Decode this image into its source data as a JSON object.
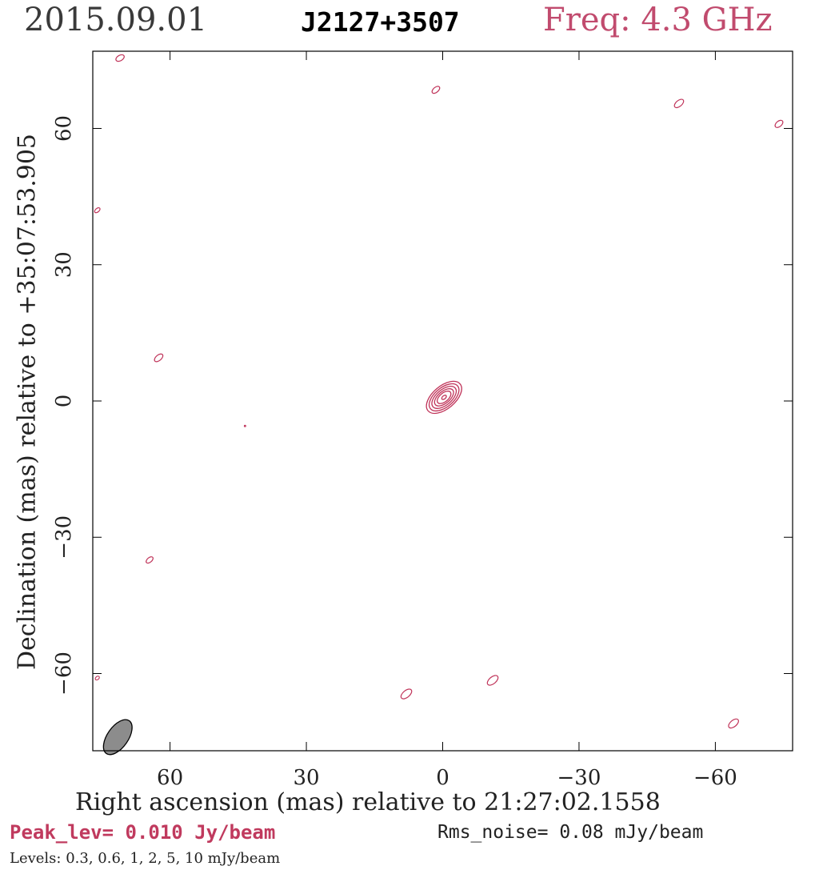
{
  "header": {
    "date": "2015.09.01",
    "source": "J2127+3507",
    "frequency": "Freq: 4.3 GHz"
  },
  "footer": {
    "peak": "Peak_lev=  0.010 Jy/beam",
    "rms": "Rms_noise= 0.08 mJy/beam",
    "levels": "Levels: 0.3, 0.6,   1,   2,   5,  10 mJy/beam"
  },
  "colors": {
    "contour": "#c0345a",
    "beam_fill": "#8c8c8c",
    "axis": "#000000"
  },
  "chart_data": {
    "type": "contour",
    "xlabel": "Right ascension (mas) relative to 21:27:02.1558",
    "ylabel": "Declination (mas) relative to +35:07:53.905",
    "xlim": [
      77,
      -77
    ],
    "ylim": [
      -77,
      77
    ],
    "x_reversed": true,
    "xticks": [
      60,
      30,
      0,
      -30,
      -60
    ],
    "xtick_labels": [
      "60",
      "30",
      "0",
      "−30",
      "−60"
    ],
    "yticks": [
      60,
      30,
      0,
      -30,
      -60
    ],
    "ytick_labels": [
      "60",
      "30",
      "0",
      "−30",
      "−60"
    ],
    "contour_levels_mJy": [
      0.3,
      0.6,
      1,
      2,
      5,
      10
    ],
    "peak_Jy_per_beam": 0.01,
    "rms_mJy_per_beam": 0.08,
    "core": {
      "x": -0.3,
      "y": 0.8,
      "pa_deg": -40,
      "contours": [
        [
          4.6,
          2.5
        ],
        [
          3.9,
          2.1
        ],
        [
          3.2,
          1.7
        ],
        [
          2.5,
          1.3
        ],
        [
          1.8,
          0.95
        ],
        [
          0.6,
          0.35
        ]
      ]
    },
    "noise_contours": [
      {
        "x": 71,
        "y": 75.5,
        "rx": 1.0,
        "ry": 0.6,
        "pa": 30
      },
      {
        "x": 1.5,
        "y": 68.5,
        "rx": 1.0,
        "ry": 0.55,
        "pa": 40
      },
      {
        "x": -52,
        "y": 65.5,
        "rx": 1.2,
        "ry": 0.65,
        "pa": 40
      },
      {
        "x": -74,
        "y": 61,
        "rx": 1.0,
        "ry": 0.6,
        "pa": 40
      },
      {
        "x": 76,
        "y": 42,
        "rx": 0.7,
        "ry": 0.4,
        "pa": 40
      },
      {
        "x": 62.5,
        "y": 9.5,
        "rx": 1.1,
        "ry": 0.6,
        "pa": 40
      },
      {
        "x": 43.5,
        "y": -5.5,
        "rx": 0.15,
        "ry": 0.15,
        "pa": 0
      },
      {
        "x": 64.5,
        "y": -35,
        "rx": 0.9,
        "ry": 0.5,
        "pa": 40
      },
      {
        "x": 76,
        "y": -61,
        "rx": 0.5,
        "ry": 0.35,
        "pa": 40
      },
      {
        "x": 8,
        "y": -64.5,
        "rx": 1.4,
        "ry": 0.75,
        "pa": 40
      },
      {
        "x": -11,
        "y": -61.5,
        "rx": 1.4,
        "ry": 0.75,
        "pa": 40
      },
      {
        "x": -64,
        "y": -71,
        "rx": 1.3,
        "ry": 0.7,
        "pa": 40
      }
    ],
    "beam": {
      "x": 71.5,
      "y": -74,
      "major": 4.4,
      "minor": 2.3,
      "pa_deg": -35
    }
  }
}
